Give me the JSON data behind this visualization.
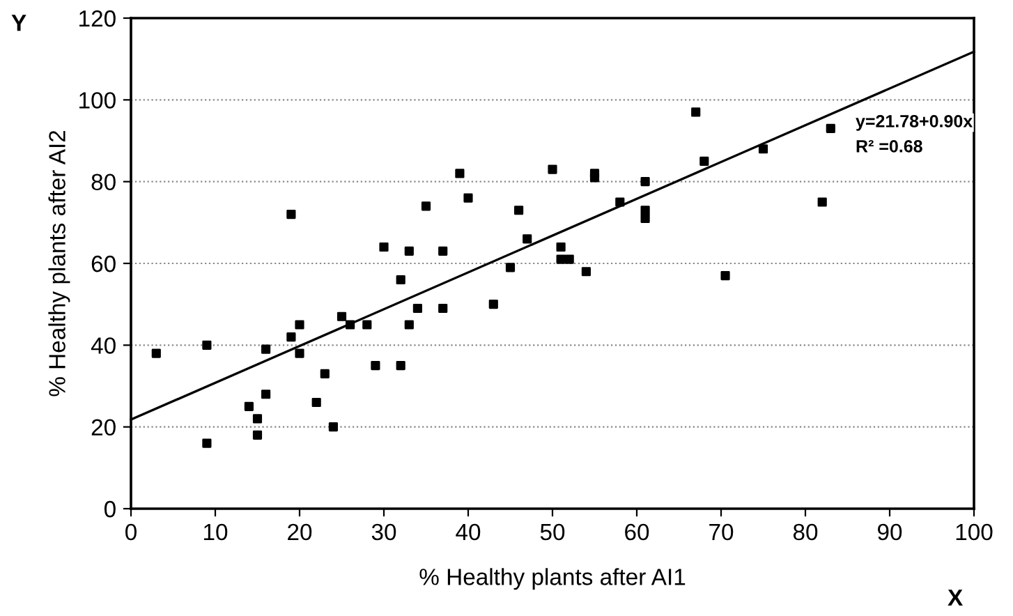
{
  "chart_data": {
    "type": "scatter",
    "xlabel": "% Healthy plants after AI1",
    "ylabel": "% Healthy plants after AI2",
    "xlim": [
      0,
      100
    ],
    "xticks": [
      0,
      10,
      20,
      30,
      40,
      50,
      60,
      70,
      80,
      90,
      100
    ],
    "ylim": [
      0,
      120
    ],
    "yticks": [
      0,
      20,
      40,
      60,
      80,
      100,
      120
    ],
    "grid": "y",
    "series": [
      {
        "marker": "square",
        "color": "#000000",
        "x": [
          3,
          9,
          9,
          14,
          15,
          15,
          16,
          16,
          19,
          19,
          20,
          20,
          22,
          23,
          24,
          25,
          26,
          28,
          29,
          30,
          32,
          32,
          33,
          33,
          34,
          35,
          37,
          37,
          39,
          40,
          43,
          45,
          46,
          47,
          50,
          51,
          51,
          52,
          54,
          55,
          55,
          58,
          61,
          61,
          61,
          67,
          68,
          70.5,
          75,
          82,
          83
        ],
        "values": [
          38,
          40,
          16,
          25,
          22,
          18,
          28,
          39,
          42,
          72,
          45,
          38,
          26,
          33,
          20,
          47,
          45,
          45,
          35,
          64,
          35,
          56,
          63,
          45,
          49,
          74,
          63,
          49,
          82,
          76,
          50,
          59,
          73,
          66,
          83,
          64,
          61,
          61,
          58,
          82,
          81,
          75,
          80,
          73,
          71,
          97,
          85,
          57,
          88,
          75,
          93
        ]
      },
      {
        "type": "line",
        "color": "#000000",
        "x": [
          0,
          100
        ],
        "values": [
          21.8,
          111.8
        ]
      }
    ],
    "annotations": [
      "y=21.78+0.90x",
      "R² =0.68",
      "Y",
      "X"
    ]
  }
}
